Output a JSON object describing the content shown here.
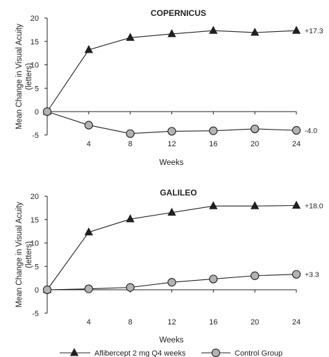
{
  "chart_data": [
    {
      "type": "line",
      "title": "COPERNICUS",
      "xlabel": "Weeks",
      "ylabel": "Mean Change in Visual Acuity (letters)",
      "ylim": [
        -5,
        20
      ],
      "yticks": [
        20,
        15,
        10,
        5,
        0,
        -5
      ],
      "xticks": [
        4,
        8,
        12,
        16,
        20,
        24
      ],
      "grid": false,
      "series": [
        {
          "name": "Aflibercept 2 mg Q4 weeks",
          "marker": "triangle",
          "x": [
            0,
            4,
            8,
            12,
            16,
            20,
            24
          ],
          "y": [
            0,
            13.2,
            15.8,
            16.6,
            17.3,
            16.9,
            17.3
          ],
          "end_label": "+17.3"
        },
        {
          "name": "Control Group",
          "marker": "circle",
          "x": [
            0,
            4,
            8,
            12,
            16,
            20,
            24
          ],
          "y": [
            0,
            -2.9,
            -4.7,
            -4.2,
            -4.1,
            -3.7,
            -4.0
          ],
          "end_label": "-4.0"
        }
      ]
    },
    {
      "type": "line",
      "title": "GALILEO",
      "xlabel": "Weeks",
      "ylabel": "Mean Change in Visual Acuity (letters)",
      "ylim": [
        -5,
        20
      ],
      "yticks": [
        20,
        15,
        10,
        5,
        0,
        -5
      ],
      "xticks": [
        4,
        8,
        12,
        16,
        20,
        24
      ],
      "grid": false,
      "series": [
        {
          "name": "Aflibercept 2 mg Q4 weeks",
          "marker": "triangle",
          "x": [
            0,
            4,
            8,
            12,
            16,
            20,
            24
          ],
          "y": [
            0,
            12.3,
            15.1,
            16.5,
            17.9,
            17.9,
            18.0
          ],
          "end_label": "+18.0"
        },
        {
          "name": "Control Group",
          "marker": "circle",
          "x": [
            0,
            4,
            8,
            12,
            16,
            20,
            24
          ],
          "y": [
            0,
            0.2,
            0.5,
            1.6,
            2.3,
            3.0,
            3.3
          ],
          "end_label": "+3.3"
        }
      ]
    }
  ],
  "legend": {
    "placement": "bottom",
    "items": [
      {
        "label": "Aflibercept 2 mg Q4 weeks",
        "marker": "triangle"
      },
      {
        "label": "Control Group",
        "marker": "circle"
      }
    ]
  },
  "colors": {
    "line": "#231f20",
    "triangle_fill": "#231f20",
    "circle_fill": "#b3b3b3"
  }
}
